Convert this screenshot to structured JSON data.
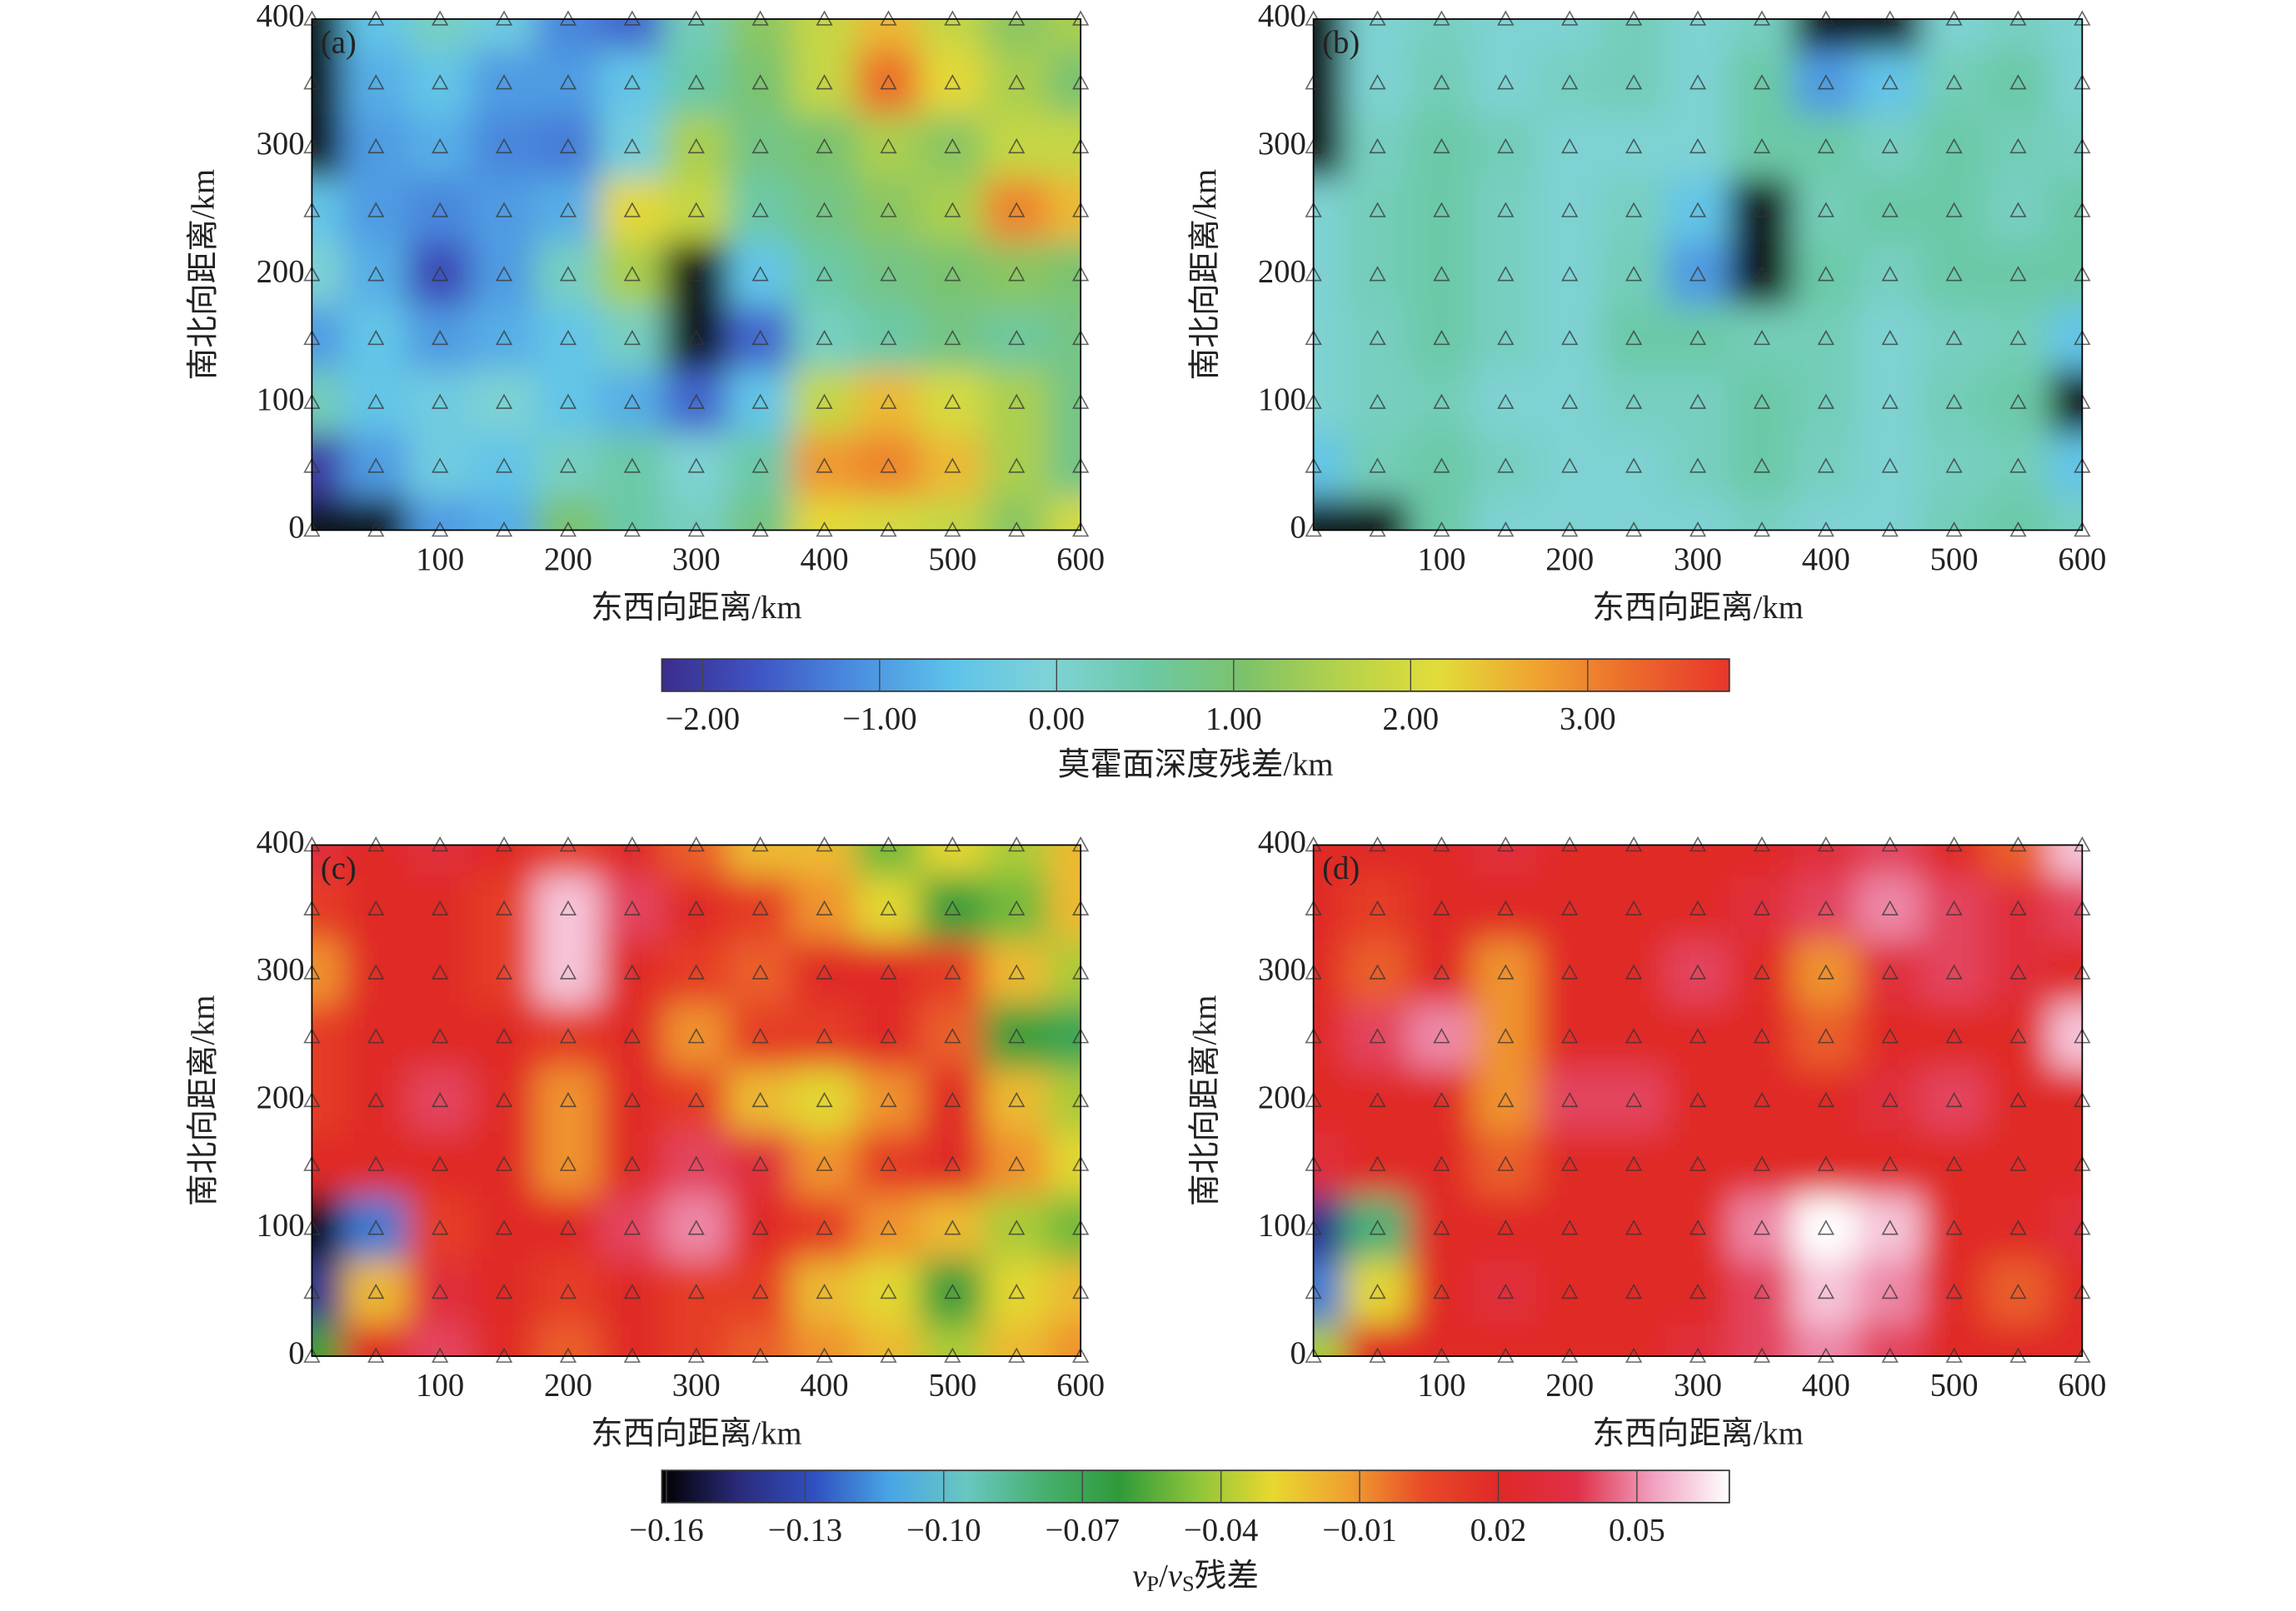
{
  "chart_data": [
    {
      "type": "heatmap",
      "panels": [
        {
          "label": "(a)",
          "xlabel": "东西向距离/km",
          "ylabel": "南北向距离/km",
          "xlim": [
            0,
            600
          ],
          "ylim": [
            0,
            400
          ],
          "xticks": [
            100,
            200,
            300,
            400,
            500,
            600
          ],
          "yticks": [
            0,
            100,
            200,
            300,
            400
          ],
          "x": [
            0,
            50,
            100,
            150,
            200,
            250,
            300,
            350,
            400,
            450,
            500,
            550,
            600
          ],
          "y": [
            400,
            350,
            300,
            250,
            200,
            150,
            100,
            50,
            0
          ],
          "values": [
            [
              -3,
              -0.5,
              0.2,
              -0.3,
              -1.2,
              -1.5,
              0.3,
              1.2,
              1.8,
              2.5,
              1.8,
              1.2,
              1.5
            ],
            [
              -3,
              -0.8,
              -0.5,
              -1.0,
              -1.0,
              -0.5,
              0.5,
              1.0,
              1.8,
              3.2,
              2.2,
              1.5,
              1.0
            ],
            [
              -2.5,
              -1.0,
              -0.8,
              -1.2,
              -1.3,
              -0.2,
              1.5,
              0.8,
              1.0,
              1.5,
              1.2,
              1.8,
              1.8
            ],
            [
              -0.5,
              -1.0,
              -1.2,
              -1.0,
              -0.8,
              2.2,
              1.8,
              0.5,
              0.8,
              1.2,
              1.5,
              3.0,
              2.5
            ],
            [
              0,
              -0.8,
              -1.8,
              -1.0,
              0.2,
              1.5,
              -2.5,
              -0.5,
              0.5,
              0.8,
              1.0,
              1.2,
              1.0
            ],
            [
              -1,
              -0.5,
              -1.0,
              -0.8,
              -0.5,
              0.2,
              -2.8,
              -1.5,
              0.2,
              0.5,
              0.8,
              0.6,
              0.8
            ],
            [
              0.3,
              -0.5,
              -0.3,
              0,
              -0.5,
              -0.8,
              -1.5,
              -0.5,
              1.8,
              2.5,
              2.0,
              1.5,
              0.8
            ],
            [
              -2,
              -1,
              -0.3,
              -0.5,
              0.2,
              0.5,
              0,
              0.5,
              2.8,
              3.0,
              2.5,
              1.5,
              0.8
            ],
            [
              -3.5,
              -3.0,
              -1.0,
              -0.8,
              1.0,
              0.5,
              0.2,
              0.8,
              2.2,
              2.0,
              1.8,
              1.2,
              2.0
            ]
          ]
        },
        {
          "label": "(b)",
          "xlabel": "东西向距离/km",
          "ylabel": "南北向距离/km",
          "xlim": [
            0,
            600
          ],
          "ylim": [
            0,
            400
          ],
          "xticks": [
            100,
            200,
            300,
            400,
            500,
            600
          ],
          "yticks": [
            0,
            100,
            200,
            300,
            400
          ],
          "x": [
            0,
            50,
            100,
            150,
            200,
            250,
            300,
            350,
            400,
            450,
            500,
            550,
            600
          ],
          "y": [
            400,
            350,
            300,
            250,
            200,
            150,
            100,
            50,
            0
          ],
          "values": [
            [
              -2.5,
              0,
              0.2,
              0,
              0,
              0.3,
              0,
              0.2,
              -2.5,
              -3,
              0,
              0.2,
              0
            ],
            [
              -3,
              0,
              0.3,
              0,
              0.2,
              0.3,
              0,
              0.5,
              -1,
              -0.5,
              0.3,
              0.5,
              0
            ],
            [
              -2.5,
              0.2,
              0.5,
              0.3,
              0,
              0,
              0,
              0.5,
              0.5,
              0.2,
              0.5,
              0.3,
              0.2
            ],
            [
              0,
              0.3,
              0.5,
              0.2,
              0,
              0.2,
              -0.5,
              -2.5,
              0.3,
              0.5,
              0.5,
              0.2,
              0.5
            ],
            [
              0,
              0.3,
              0.5,
              0.2,
              0,
              0.3,
              -1.0,
              -3.0,
              0.5,
              0.2,
              0.5,
              0.5,
              0.5
            ],
            [
              0,
              0.2,
              0.5,
              0.2,
              0,
              0.5,
              0.5,
              0.3,
              0.3,
              0,
              0.2,
              0.3,
              -0.5
            ],
            [
              0,
              0.2,
              0.3,
              0,
              0,
              0.2,
              0.2,
              0.5,
              0.3,
              0,
              0.3,
              0.5,
              -3.0
            ],
            [
              -0.5,
              0.3,
              0.5,
              0.2,
              0,
              0,
              0.2,
              0.5,
              0.2,
              0,
              0.2,
              0.3,
              -0.5
            ],
            [
              -3,
              -2.5,
              0.5,
              0,
              0,
              0,
              0,
              0.2,
              0,
              0,
              0.3,
              0.5,
              0.2
            ]
          ]
        }
      ],
      "colorbar": {
        "label": [
          {
            "text": "莫霍面深度残差/km"
          }
        ],
        "clim": [
          -2.23,
          3.8
        ],
        "ticks": [
          {
            "value": -2,
            "label": "−2.00"
          },
          {
            "value": -1,
            "label": "−1.00"
          },
          {
            "value": 0,
            "label": "0.00"
          },
          {
            "value": 1,
            "label": "1.00"
          },
          {
            "value": 2,
            "label": "2.00"
          },
          {
            "value": 3,
            "label": "3.00"
          }
        ],
        "colormap": [
          "#3b2c8c",
          "#3f55c4",
          "#4a8ee0",
          "#5ec3ea",
          "#7fd3d6",
          "#6cc9a6",
          "#7cc26a",
          "#b5d24a",
          "#e2dd3a",
          "#f0a431",
          "#ec6a2c",
          "#e8362a"
        ],
        "under_color": "#101418"
      }
    },
    {
      "type": "heatmap",
      "panels": [
        {
          "label": "(c)",
          "xlabel": "东西向距离/km",
          "ylabel": "南北向距离/km",
          "xlim": [
            0,
            600
          ],
          "ylim": [
            0,
            400
          ],
          "xticks": [
            100,
            200,
            300,
            400,
            500,
            600
          ],
          "yticks": [
            0,
            100,
            200,
            300,
            400
          ],
          "x": [
            0,
            50,
            100,
            150,
            200,
            250,
            300,
            350,
            400,
            450,
            500,
            550,
            600
          ],
          "y": [
            400,
            350,
            300,
            250,
            200,
            150,
            100,
            50,
            0
          ],
          "values": [
            [
              0.03,
              0.02,
              0.03,
              0.02,
              0.01,
              0.02,
              0,
              -0.02,
              -0.02,
              -0.05,
              -0.03,
              -0.04,
              -0.02
            ],
            [
              0.01,
              0.02,
              0.02,
              0.01,
              0.06,
              0.04,
              0.02,
              0.01,
              -0.01,
              -0.03,
              -0.06,
              -0.05,
              -0.02
            ],
            [
              -0.01,
              0.02,
              0.02,
              0.01,
              0.06,
              0.02,
              0.01,
              0,
              0.02,
              0.02,
              0.01,
              -0.02,
              -0.04
            ],
            [
              0.01,
              0.02,
              0.02,
              0.02,
              0.01,
              0.02,
              -0.01,
              0.01,
              0.01,
              0.02,
              0,
              -0.06,
              -0.07
            ],
            [
              0.01,
              0.02,
              0.04,
              0.02,
              -0.01,
              0.02,
              0.01,
              -0.02,
              -0.03,
              -0.01,
              0.02,
              -0.02,
              -0.04
            ],
            [
              0.02,
              0.02,
              0.02,
              0.02,
              -0.01,
              0.02,
              0.04,
              0.03,
              -0.01,
              0.01,
              0.02,
              -0.01,
              -0.03
            ],
            [
              -0.16,
              -0.12,
              0.01,
              0.02,
              0.02,
              0.04,
              0.05,
              0.02,
              0.01,
              -0.01,
              -0.02,
              -0.04,
              -0.05
            ],
            [
              -0.14,
              -0.02,
              0.03,
              0.02,
              0.01,
              0.02,
              0.01,
              0.01,
              -0.02,
              -0.03,
              -0.06,
              -0.03,
              -0.02
            ],
            [
              -0.06,
              0.02,
              0.04,
              0.02,
              0,
              0.02,
              0.01,
              0,
              -0.01,
              -0.02,
              -0.04,
              -0.02,
              -0.01
            ]
          ]
        },
        {
          "label": "(d)",
          "xlabel": "东西向距离/km",
          "ylabel": "南北向距离/km",
          "xlim": [
            0,
            600
          ],
          "ylim": [
            0,
            400
          ],
          "xticks": [
            100,
            200,
            300,
            400,
            500,
            600
          ],
          "yticks": [
            0,
            100,
            200,
            300,
            400
          ],
          "x": [
            0,
            50,
            100,
            150,
            200,
            250,
            300,
            350,
            400,
            450,
            500,
            550,
            600
          ],
          "y": [
            400,
            350,
            300,
            250,
            200,
            150,
            100,
            50,
            0
          ],
          "values": [
            [
              0.02,
              0.02,
              0.02,
              0.03,
              0.02,
              0.02,
              0.02,
              0.02,
              0.03,
              0.04,
              0.02,
              0,
              0.06
            ],
            [
              0.02,
              0.01,
              0.02,
              0.02,
              0.02,
              0.02,
              0.02,
              0.03,
              0.04,
              0.05,
              0.04,
              0.03,
              0.04
            ],
            [
              0.02,
              0,
              0.02,
              -0.01,
              0.02,
              0.02,
              0.04,
              0.02,
              -0.01,
              0.03,
              0.04,
              0.03,
              0.02
            ],
            [
              0.02,
              0.04,
              0.05,
              -0.01,
              0.02,
              0.02,
              0.02,
              0.02,
              0,
              0.02,
              0.02,
              0.02,
              0.06
            ],
            [
              0.02,
              0.02,
              0.02,
              -0.01,
              0.04,
              0.04,
              0.02,
              0.02,
              0.02,
              0.03,
              0.04,
              0.02,
              0.02
            ],
            [
              0.03,
              0.02,
              0.02,
              0,
              0.02,
              0.02,
              0.02,
              0.02,
              0.02,
              0.02,
              0.02,
              0.02,
              0.02
            ],
            [
              -0.14,
              -0.08,
              0.02,
              0.02,
              0.02,
              0.02,
              0.02,
              0.05,
              0.07,
              0.06,
              0.02,
              0.02,
              0.03
            ],
            [
              -0.12,
              -0.03,
              0.02,
              0.03,
              0.02,
              0.02,
              0.02,
              0.04,
              0.06,
              0.05,
              0.02,
              0,
              0.02
            ],
            [
              -0.04,
              0.02,
              0.02,
              0.02,
              0.02,
              0.02,
              0.03,
              0.04,
              0.05,
              0.04,
              0.02,
              0.02,
              0.02
            ]
          ]
        }
      ],
      "colorbar": {
        "label": [
          {
            "text": "v",
            "italic": true
          },
          {
            "text": "P",
            "sub": true
          },
          {
            "text": "/"
          },
          {
            "text": "v",
            "italic": true
          },
          {
            "text": "S",
            "sub": true
          },
          {
            "text": "残差"
          }
        ],
        "clim": [
          -0.161,
          0.07
        ],
        "ticks": [
          {
            "value": -0.16,
            "label": "−0.16"
          },
          {
            "value": -0.13,
            "label": "−0.13"
          },
          {
            "value": -0.1,
            "label": "−0.10"
          },
          {
            "value": -0.07,
            "label": "−0.07"
          },
          {
            "value": -0.04,
            "label": "−0.04"
          },
          {
            "value": -0.01,
            "label": "−0.01"
          },
          0.02,
          0.05
        ],
        "colormap": [
          "#000000",
          "#2a2a7a",
          "#3050c0",
          "#49a6e6",
          "#68c7c0",
          "#48b070",
          "#2f9a3a",
          "#8cc43a",
          "#e8d830",
          "#f0a030",
          "#e84a28",
          "#e02828",
          "#e03048",
          "#f0a0c0",
          "#ffffff"
        ]
      }
    }
  ]
}
